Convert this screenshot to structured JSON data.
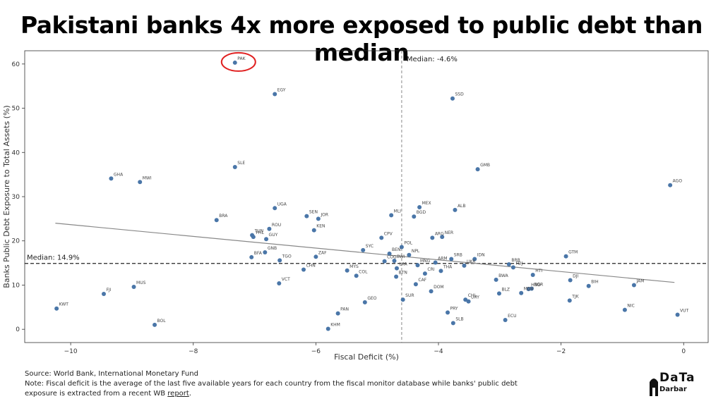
{
  "title": "Pakistani banks 4x more exposed to public debt than median",
  "footer": {
    "source": "Source: World Bank, International Monetary Fund",
    "note": "Note: Fiscal deficit is the average of the last five available years for each country from the fiscal monitor database while banks' public debt exposure is extracted from a recent WB",
    "link_text": "report",
    "tail": "."
  },
  "logo": {
    "top": "DaTa",
    "bottom": "Darbar"
  },
  "colors": {
    "point": "#4a76a8",
    "highlight": "#e02020",
    "trend": "#888888"
  },
  "chart_data": {
    "type": "scatter",
    "xlabel": "Fiscal Deficit  (%)",
    "ylabel": "Banks Public Debt Exposure to Total Assets (%)",
    "xlim": [
      -10.75,
      0.4
    ],
    "ylim": [
      -3,
      63
    ],
    "xticks": [
      -10,
      -8,
      -6,
      -4,
      -2,
      0
    ],
    "xtick_labels": [
      "−10",
      "−8",
      "−6",
      "−4",
      "−2",
      "0"
    ],
    "yticks": [
      0,
      10,
      20,
      30,
      40,
      50,
      60
    ],
    "yticks_labels": [
      "0",
      "10",
      "20",
      "30",
      "40",
      "50",
      "60"
    ],
    "median_x": {
      "value": -4.6,
      "label": "Median: -4.6%"
    },
    "median_y": {
      "value": 14.9,
      "label": "Median: 14.9%"
    },
    "trendline": {
      "x": [
        -10.25,
        -0.15
      ],
      "y": [
        24.0,
        10.6
      ]
    },
    "highlight": "PAK",
    "points": [
      {
        "label": "PAK",
        "x": -7.32,
        "y": 60.3
      },
      {
        "label": "EGY",
        "x": -6.67,
        "y": 53.2
      },
      {
        "label": "SSD",
        "x": -3.77,
        "y": 52.2
      },
      {
        "label": "SLE",
        "x": -7.32,
        "y": 36.7
      },
      {
        "label": "GMB",
        "x": -3.36,
        "y": 36.2
      },
      {
        "label": "GHA",
        "x": -9.34,
        "y": 34.1
      },
      {
        "label": "MWI",
        "x": -8.87,
        "y": 33.3
      },
      {
        "label": "AGO",
        "x": -0.22,
        "y": 32.6
      },
      {
        "label": "UGA",
        "x": -6.67,
        "y": 27.4
      },
      {
        "label": "MEX",
        "x": -4.31,
        "y": 27.6
      },
      {
        "label": "ALB",
        "x": -3.73,
        "y": 27.0
      },
      {
        "label": "MLI",
        "x": -4.77,
        "y": 25.8
      },
      {
        "label": "BGD",
        "x": -4.4,
        "y": 25.5
      },
      {
        "label": "SEN",
        "x": -6.15,
        "y": 25.6
      },
      {
        "label": "JOR",
        "x": -5.96,
        "y": 25.0
      },
      {
        "label": "BRA",
        "x": -7.62,
        "y": 24.7
      },
      {
        "label": "ROU",
        "x": -6.76,
        "y": 22.7
      },
      {
        "label": "KEN",
        "x": -6.03,
        "y": 22.4
      },
      {
        "label": "TUN",
        "x": -7.04,
        "y": 21.3
      },
      {
        "label": "PHL",
        "x": -7.02,
        "y": 20.9
      },
      {
        "label": "GUY",
        "x": -6.81,
        "y": 20.4
      },
      {
        "label": "CPV",
        "x": -4.93,
        "y": 20.7
      },
      {
        "label": "ARG",
        "x": -4.1,
        "y": 20.7
      },
      {
        "label": "NER",
        "x": -3.94,
        "y": 20.9
      },
      {
        "label": "POL",
        "x": -4.6,
        "y": 18.6
      },
      {
        "label": "SYC",
        "x": -5.23,
        "y": 17.9
      },
      {
        "label": "GNB",
        "x": -6.83,
        "y": 17.4
      },
      {
        "label": "BEN",
        "x": -4.8,
        "y": 17.1
      },
      {
        "label": "NPL",
        "x": -4.48,
        "y": 16.8
      },
      {
        "label": "BFA",
        "x": -7.05,
        "y": 16.3
      },
      {
        "label": "ZAF",
        "x": -6.0,
        "y": 16.4
      },
      {
        "label": "GTM",
        "x": -1.92,
        "y": 16.5
      },
      {
        "label": "IDN",
        "x": -3.41,
        "y": 15.9
      },
      {
        "label": "SRB",
        "x": -3.79,
        "y": 15.9
      },
      {
        "label": "TGO",
        "x": -6.59,
        "y": 15.6
      },
      {
        "label": "BWI",
        "x": -4.72,
        "y": 15.5
      },
      {
        "label": "COG",
        "x": -4.88,
        "y": 15.4
      },
      {
        "label": "ARM",
        "x": -4.05,
        "y": 15.1
      },
      {
        "label": "MNG",
        "x": -4.34,
        "y": 14.5
      },
      {
        "label": "BRB",
        "x": -2.85,
        "y": 14.7
      },
      {
        "label": "FDJ",
        "x": -2.78,
        "y": 14.0
      },
      {
        "label": "UKR",
        "x": -3.58,
        "y": 14.4
      },
      {
        "label": "LKA",
        "x": -4.68,
        "y": 13.8
      },
      {
        "label": "THA",
        "x": -3.96,
        "y": 13.2
      },
      {
        "label": "CHN",
        "x": -6.2,
        "y": 13.5
      },
      {
        "label": "MYS",
        "x": -5.49,
        "y": 13.3
      },
      {
        "label": "HTI",
        "x": -2.46,
        "y": 12.3
      },
      {
        "label": "CRI",
        "x": -4.22,
        "y": 12.6
      },
      {
        "label": "BTN",
        "x": -4.69,
        "y": 11.9
      },
      {
        "label": "COL",
        "x": -5.34,
        "y": 12.1
      },
      {
        "label": "BWA",
        "x": -3.06,
        "y": 11.2
      },
      {
        "label": "DJI",
        "x": -1.85,
        "y": 11.1
      },
      {
        "label": "CAF",
        "x": -4.37,
        "y": 10.2
      },
      {
        "label": "VCT",
        "x": -6.6,
        "y": 10.4
      },
      {
        "label": "BIH",
        "x": -1.55,
        "y": 9.8
      },
      {
        "label": "JAM",
        "x": -0.81,
        "y": 10.0
      },
      {
        "label": "BGR",
        "x": -2.48,
        "y": 9.2
      },
      {
        "label": "HND",
        "x": -2.53,
        "y": 9.1
      },
      {
        "label": "DOM",
        "x": -4.12,
        "y": 8.6
      },
      {
        "label": "BLZ",
        "x": -3.01,
        "y": 8.1
      },
      {
        "label": "MDV",
        "x": -2.65,
        "y": 8.2
      },
      {
        "label": "FJI",
        "x": -9.46,
        "y": 8.0
      },
      {
        "label": "MUS",
        "x": -8.97,
        "y": 9.6
      },
      {
        "label": "SUR",
        "x": -4.58,
        "y": 6.7
      },
      {
        "label": "CHL",
        "x": -3.56,
        "y": 6.7
      },
      {
        "label": "URY",
        "x": -3.51,
        "y": 6.3
      },
      {
        "label": "TJK",
        "x": -1.86,
        "y": 6.5
      },
      {
        "label": "GEO",
        "x": -5.2,
        "y": 6.1
      },
      {
        "label": "KWT",
        "x": -10.23,
        "y": 4.7
      },
      {
        "label": "NIC",
        "x": -0.96,
        "y": 4.4
      },
      {
        "label": "PRY",
        "x": -3.85,
        "y": 3.8
      },
      {
        "label": "PAN",
        "x": -5.64,
        "y": 3.6
      },
      {
        "label": "VUT",
        "x": -0.1,
        "y": 3.3
      },
      {
        "label": "ECU",
        "x": -2.91,
        "y": 2.1
      },
      {
        "label": "SLB",
        "x": -3.76,
        "y": 1.4
      },
      {
        "label": "BOL",
        "x": -8.63,
        "y": 1.0
      },
      {
        "label": "KHM",
        "x": -5.8,
        "y": 0.1
      }
    ]
  }
}
